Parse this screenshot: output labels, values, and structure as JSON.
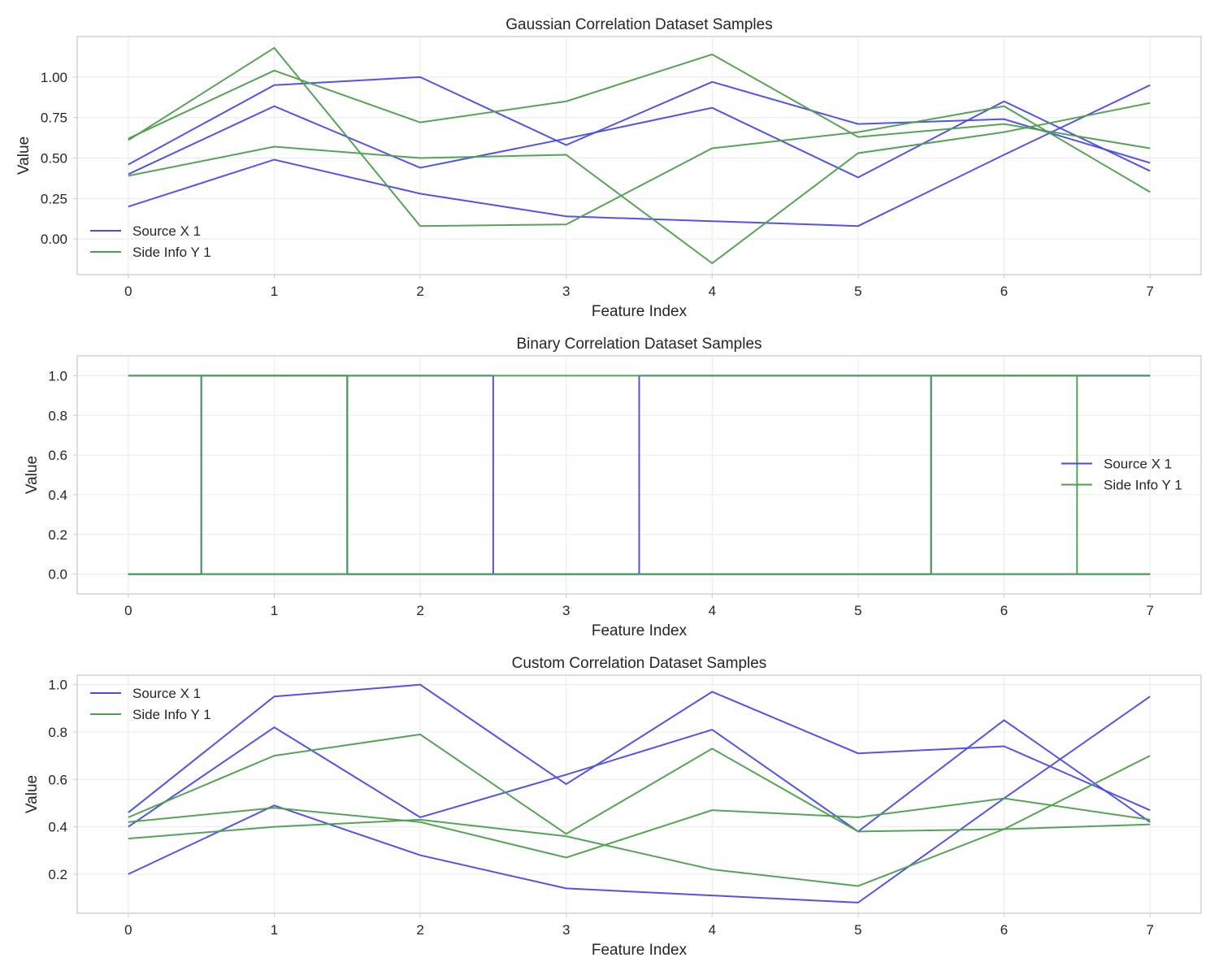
{
  "chart_data": [
    {
      "type": "line",
      "title": "Gaussian Correlation Dataset Samples",
      "xlabel": "Feature Index",
      "ylabel": "Value",
      "x": [
        0,
        1,
        2,
        3,
        4,
        5,
        6,
        7
      ],
      "xticks": [
        "0",
        "1",
        "2",
        "3",
        "4",
        "5",
        "6",
        "7"
      ],
      "xlim": [
        -0.35,
        7.35
      ],
      "yticks": [
        "0.00",
        "0.25",
        "0.50",
        "0.75",
        "1.00"
      ],
      "ytick_values": [
        0,
        0.25,
        0.5,
        0.75,
        1.0
      ],
      "ylim": [
        -0.22,
        1.25
      ],
      "grid": true,
      "legend": "lower-left",
      "legend_entries": [
        {
          "name": "Source X 1",
          "color": "#4a4ae8"
        },
        {
          "name": "Side Info Y 1",
          "color": "#4c9f4c"
        }
      ],
      "step": false,
      "series": [
        {
          "color": "#4a4ae8",
          "values": [
            0.46,
            0.95,
            1.0,
            0.58,
            0.97,
            0.71,
            0.74,
            0.47
          ]
        },
        {
          "color": "#4a4ae8",
          "values": [
            0.4,
            0.82,
            0.44,
            0.62,
            0.81,
            0.38,
            0.85,
            0.42
          ]
        },
        {
          "color": "#4a4ae8",
          "values": [
            0.2,
            0.49,
            0.28,
            0.14,
            0.11,
            0.08,
            0.52,
            0.95
          ]
        },
        {
          "color": "#4c9f4c",
          "values": [
            0.61,
            1.18,
            0.08,
            0.09,
            0.56,
            0.66,
            0.82,
            0.29
          ]
        },
        {
          "color": "#4c9f4c",
          "values": [
            0.62,
            1.04,
            0.72,
            0.85,
            1.14,
            0.63,
            0.71,
            0.56
          ]
        },
        {
          "color": "#4c9f4c",
          "values": [
            0.39,
            0.57,
            0.5,
            0.52,
            -0.15,
            0.53,
            0.66,
            0.84
          ]
        }
      ]
    },
    {
      "type": "line",
      "title": "Binary Correlation Dataset Samples",
      "xlabel": "Feature Index",
      "ylabel": "Value",
      "x": [
        0,
        1,
        2,
        3,
        4,
        5,
        6,
        7
      ],
      "xticks": [
        "0",
        "1",
        "2",
        "3",
        "4",
        "5",
        "6",
        "7"
      ],
      "xlim": [
        -0.35,
        7.35
      ],
      "yticks": [
        "0.0",
        "0.2",
        "0.4",
        "0.6",
        "0.8",
        "1.0"
      ],
      "ytick_values": [
        0,
        0.2,
        0.4,
        0.6,
        0.8,
        1.0
      ],
      "ylim": [
        -0.1,
        1.1
      ],
      "grid": true,
      "legend": "center-right",
      "legend_entries": [
        {
          "name": "Source X 1",
          "color": "#4a4ae8"
        },
        {
          "name": "Side Info Y 1",
          "color": "#4c9f4c"
        }
      ],
      "step": true,
      "series": [
        {
          "color": "#4a4ae8",
          "values": [
            1,
            1,
            1,
            0,
            1,
            1,
            1,
            1
          ]
        },
        {
          "color": "#4a4ae8",
          "values": [
            0,
            1,
            0,
            0,
            0,
            0,
            0,
            0
          ]
        },
        {
          "color": "#4a4ae8",
          "values": [
            0,
            0,
            0,
            0,
            0,
            0,
            1,
            1
          ]
        },
        {
          "color": "#4c9f4c",
          "values": [
            1,
            1,
            1,
            1,
            1,
            1,
            1,
            1
          ]
        },
        {
          "color": "#4c9f4c",
          "values": [
            0,
            1,
            0,
            0,
            0,
            0,
            0,
            0
          ]
        },
        {
          "color": "#4c9f4c",
          "values": [
            0,
            0,
            0,
            0,
            0,
            0,
            1,
            0
          ]
        }
      ]
    },
    {
      "type": "line",
      "title": "Custom Correlation Dataset Samples",
      "xlabel": "Feature Index",
      "ylabel": "Value",
      "x": [
        0,
        1,
        2,
        3,
        4,
        5,
        6,
        7
      ],
      "xticks": [
        "0",
        "1",
        "2",
        "3",
        "4",
        "5",
        "6",
        "7"
      ],
      "xlim": [
        -0.35,
        7.35
      ],
      "yticks": [
        "0.2",
        "0.4",
        "0.6",
        "0.8",
        "1.0"
      ],
      "ytick_values": [
        0.2,
        0.4,
        0.6,
        0.8,
        1.0
      ],
      "ylim": [
        0.035,
        1.04
      ],
      "grid": true,
      "legend": "upper-left",
      "legend_entries": [
        {
          "name": "Source X 1",
          "color": "#4a4ae8"
        },
        {
          "name": "Side Info Y 1",
          "color": "#4c9f4c"
        }
      ],
      "step": false,
      "series": [
        {
          "color": "#4a4ae8",
          "values": [
            0.46,
            0.95,
            1.0,
            0.58,
            0.97,
            0.71,
            0.74,
            0.47
          ]
        },
        {
          "color": "#4a4ae8",
          "values": [
            0.4,
            0.82,
            0.44,
            0.62,
            0.81,
            0.38,
            0.85,
            0.42
          ]
        },
        {
          "color": "#4a4ae8",
          "values": [
            0.2,
            0.49,
            0.28,
            0.14,
            0.11,
            0.08,
            0.52,
            0.95
          ]
        },
        {
          "color": "#4c9f4c",
          "values": [
            0.44,
            0.7,
            0.79,
            0.37,
            0.73,
            0.38,
            0.39,
            0.7
          ]
        },
        {
          "color": "#4c9f4c",
          "values": [
            0.42,
            0.48,
            0.42,
            0.27,
            0.47,
            0.44,
            0.52,
            0.43
          ]
        },
        {
          "color": "#4c9f4c",
          "values": [
            0.35,
            0.4,
            0.43,
            0.36,
            0.22,
            0.15,
            0.39,
            0.41
          ]
        }
      ]
    }
  ]
}
